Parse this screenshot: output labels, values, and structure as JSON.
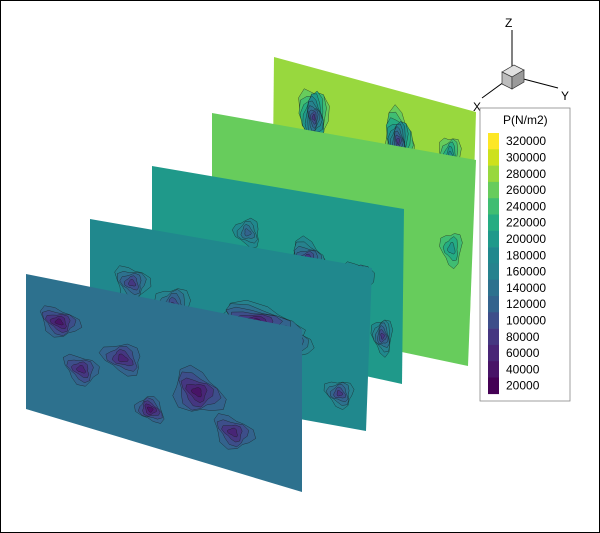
{
  "chart_data": {
    "type": "heatmap",
    "variable_label": "P(N/m2)",
    "legend_levels": [
      320000,
      300000,
      280000,
      260000,
      240000,
      220000,
      200000,
      180000,
      160000,
      140000,
      120000,
      100000,
      80000,
      60000,
      40000,
      20000
    ],
    "legend_colors": [
      "#fde725",
      "#cde11d",
      "#98d83e",
      "#67cc5c",
      "#40bd72",
      "#25ac82",
      "#1f998a",
      "#20888d",
      "#26828e",
      "#2d718e",
      "#33638d",
      "#3d4e8a",
      "#453781",
      "#482576",
      "#481467",
      "#440154"
    ],
    "axes": {
      "x": "X",
      "y": "Y",
      "z": "Z"
    },
    "planes": [
      {
        "index": 1,
        "base_level": 140000,
        "lows": [
          [
            0.12,
            0.3,
            50000,
            0.07,
            0.1
          ],
          [
            0.2,
            0.6,
            60000,
            0.06,
            0.1
          ],
          [
            0.35,
            0.45,
            60000,
            0.07,
            0.1
          ],
          [
            0.45,
            0.75,
            50000,
            0.05,
            0.08
          ],
          [
            0.62,
            0.55,
            40000,
            0.09,
            0.14
          ],
          [
            0.75,
            0.75,
            60000,
            0.07,
            0.1
          ]
        ]
      },
      {
        "index": 2,
        "base_level": 180000,
        "lows": [
          [
            0.15,
            0.35,
            80000,
            0.06,
            0.1
          ],
          [
            0.3,
            0.45,
            80000,
            0.06,
            0.12
          ],
          [
            0.6,
            0.45,
            40000,
            0.15,
            0.1
          ],
          [
            0.72,
            0.55,
            60000,
            0.07,
            0.1
          ],
          [
            0.9,
            0.8,
            80000,
            0.05,
            0.08
          ]
        ]
      },
      {
        "index": 3,
        "base_level": 200000,
        "lows": [
          [
            0.38,
            0.3,
            120000,
            0.05,
            0.08
          ],
          [
            0.62,
            0.4,
            60000,
            0.07,
            0.12
          ],
          [
            0.82,
            0.45,
            40000,
            0.06,
            0.1
          ],
          [
            0.92,
            0.75,
            80000,
            0.04,
            0.1
          ]
        ]
      },
      {
        "index": 4,
        "base_level": 260000,
        "lows": [
          [
            0.5,
            0.5,
            220000,
            0.04,
            0.07
          ],
          [
            0.92,
            0.45,
            200000,
            0.04,
            0.08
          ]
        ]
      },
      {
        "index": 5,
        "base_level": 280000,
        "lows": [
          [
            0.2,
            0.25,
            80000,
            0.07,
            0.15
          ],
          [
            0.62,
            0.25,
            80000,
            0.07,
            0.15
          ],
          [
            0.88,
            0.25,
            180000,
            0.05,
            0.1
          ]
        ]
      }
    ]
  }
}
